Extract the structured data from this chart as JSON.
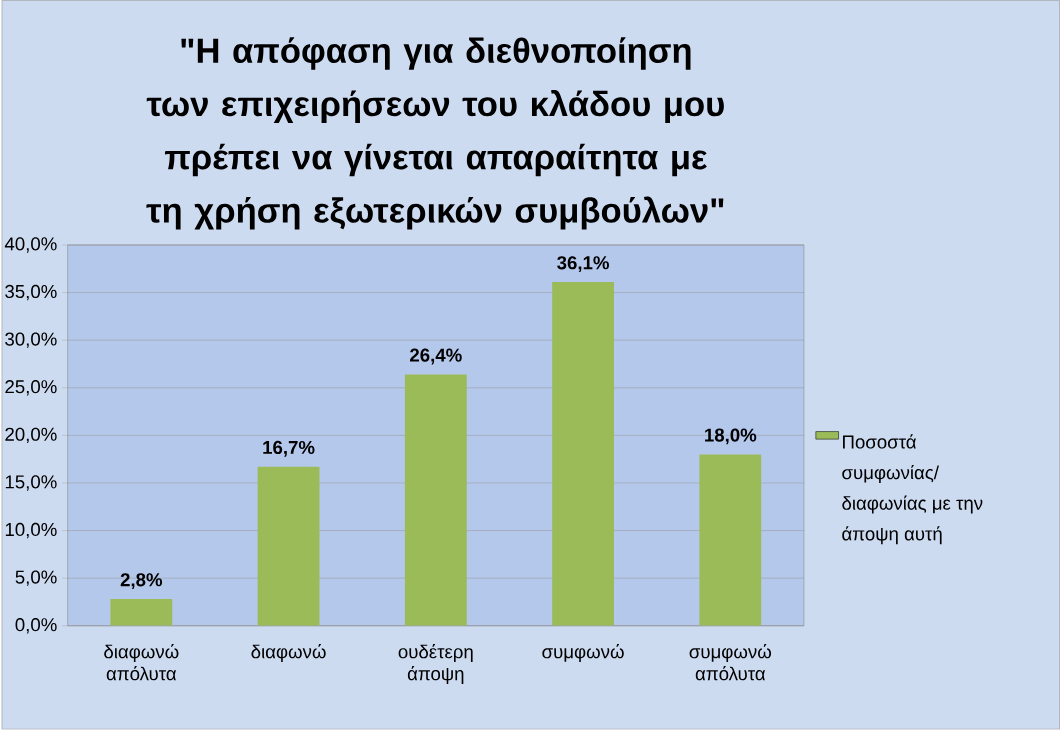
{
  "chart_data": {
    "type": "bar",
    "title": "\"Η απόφαση για διεθνοποίηση των επιχειρήσεων του κλάδου μου πρέπει να γίνεται απαραίτητα με τη χρήση εξωτερικών συμβούλων\"",
    "categories": [
      "διαφωνώ απόλυτα",
      "διαφωνώ",
      "ουδέτερη άποψη",
      "συμφωνώ",
      "συμφωνώ απόλυτα"
    ],
    "series": [
      {
        "name": "Ποσοστά συμφωνίας/ διαφωνίας με την άποψη αυτή",
        "color": "#9bbb59",
        "values": [
          2.8,
          16.7,
          26.4,
          36.1,
          18.0
        ],
        "value_labels": [
          "2,8%",
          "16,7%",
          "26,4%",
          "36,1%",
          "18,0%"
        ]
      }
    ],
    "ylim": [
      0,
      40
    ],
    "yticks": [
      {
        "value": 0,
        "label": "0,0%"
      },
      {
        "value": 5,
        "label": "5,0%"
      },
      {
        "value": 10,
        "label": "10,0%"
      },
      {
        "value": 15,
        "label": "15,0%"
      },
      {
        "value": 20,
        "label": "20,0%"
      },
      {
        "value": 25,
        "label": "25,0%"
      },
      {
        "value": 30,
        "label": "30,0%"
      },
      {
        "value": 35,
        "label": "35,0%"
      },
      {
        "value": 40,
        "label": "40,0%"
      }
    ],
    "grid": "y",
    "legend": "right"
  }
}
